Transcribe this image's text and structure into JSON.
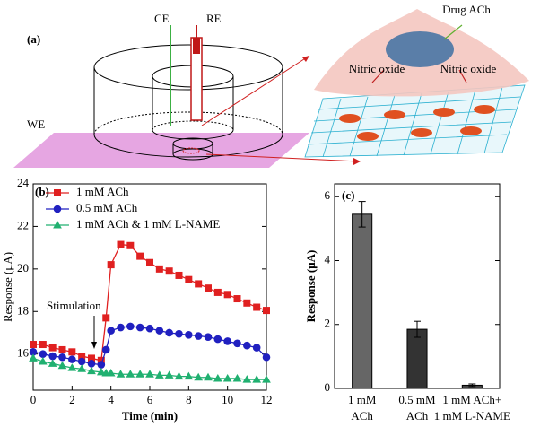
{
  "diagram": {
    "panel_label": "(a)",
    "counter_electrode": "CE",
    "reference_electrode": "RE",
    "working_electrode": "WE",
    "drug": "Drug ACh",
    "product_left": "Nitric oxide",
    "product_right": "Nitric oxide"
  },
  "chart_data": [
    {
      "type": "line",
      "panel_label": "(b)",
      "x_label": "Time (min)",
      "y_label": "Response (μA)",
      "annotation": "Stimulation",
      "legend": "upper left",
      "x": [
        0,
        0.5,
        1,
        1.5,
        2,
        2.5,
        3,
        3.5,
        3.75,
        4,
        4.5,
        5,
        5.5,
        6,
        6.5,
        7,
        7.5,
        8,
        8.5,
        9,
        9.5,
        10,
        10.5,
        11,
        11.5,
        12
      ],
      "series": [
        {
          "name": "1 mM ACh",
          "color": "#e02020",
          "marker": "square",
          "values": [
            16.45,
            16.45,
            16.3,
            16.2,
            16.1,
            15.9,
            15.8,
            15.7,
            17.7,
            20.2,
            21.15,
            21.1,
            20.6,
            20.3,
            20.0,
            19.9,
            19.7,
            19.5,
            19.3,
            19.1,
            18.9,
            18.8,
            18.6,
            18.4,
            18.2,
            18.05
          ]
        },
        {
          "name": "0.5 mM ACh",
          "color": "#2020c0",
          "marker": "circle",
          "values": [
            16.1,
            16.0,
            15.9,
            15.85,
            15.75,
            15.65,
            15.55,
            15.5,
            16.2,
            17.1,
            17.25,
            17.3,
            17.25,
            17.2,
            17.1,
            17.0,
            16.95,
            16.9,
            16.85,
            16.8,
            16.7,
            16.6,
            16.5,
            16.4,
            16.3,
            15.85
          ]
        },
        {
          "name": "1 mM ACh & 1 mM L-NAME",
          "color": "#20b070",
          "marker": "triangle",
          "values": [
            15.8,
            15.65,
            15.55,
            15.45,
            15.35,
            15.3,
            15.2,
            15.15,
            15.1,
            15.1,
            15.05,
            15.05,
            15.05,
            15.05,
            15.0,
            15.0,
            14.95,
            14.95,
            14.9,
            14.9,
            14.85,
            14.85,
            14.85,
            14.8,
            14.8,
            14.8
          ]
        }
      ],
      "xlim": [
        0,
        12
      ],
      "xticks": [
        0,
        2,
        4,
        6,
        8,
        10,
        12
      ],
      "ylim": [
        14.3,
        24
      ],
      "yticks": [
        16,
        18,
        20,
        22,
        24
      ]
    },
    {
      "type": "bar",
      "panel_label": "(c)",
      "y_label": "Response (μA)",
      "categories": [
        [
          "1 mM",
          "ACh"
        ],
        [
          "0.5 mM",
          "ACh"
        ],
        [
          "1 mM ACh+",
          "1 mM L-NAME"
        ]
      ],
      "values": [
        5.45,
        1.85,
        0.1
      ],
      "errors": [
        0.4,
        0.25,
        0.04
      ],
      "colors": [
        "#666666",
        "#333333",
        "#444444"
      ],
      "ylim": [
        0,
        6.4
      ],
      "yticks": [
        0,
        2,
        4,
        6
      ]
    }
  ]
}
